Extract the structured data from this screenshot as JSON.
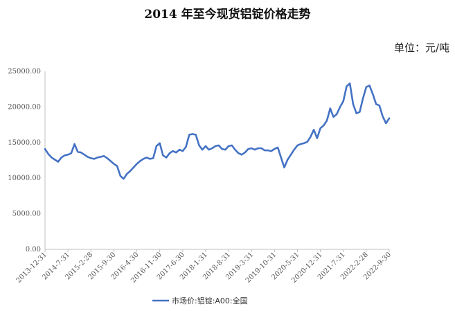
{
  "chart_data": {
    "type": "line",
    "title": "2014 年至今现货铝锭价格走势",
    "unit": "单位：元/吨",
    "ylim": [
      0,
      25000
    ],
    "yticks": [
      "25000.00",
      "20000.00",
      "15000.00",
      "10000.00",
      "5000.00",
      "0.00"
    ],
    "ytick_values": [
      25000,
      20000,
      15000,
      10000,
      5000,
      0
    ],
    "xticks": [
      "2013-12-31",
      "2014-7-31",
      "2015-2-28",
      "2015-9-30",
      "2016-4-30",
      "2016-11-30",
      "2017-6-30",
      "2018-1-31",
      "2018-8-31",
      "2019-3-31",
      "2019-10-31",
      "2020-5-31",
      "2020-12-31",
      "2021-7-31",
      "2022-2-28",
      "2022-9-30"
    ],
    "grid": false,
    "legend": "bottom",
    "line_color": "#4472C4",
    "series": [
      {
        "name": "市场价:铝锭:A00:全国",
        "x": [
          0,
          1,
          2,
          3,
          4,
          5,
          6,
          7,
          8,
          9,
          10,
          11,
          12,
          13,
          14,
          15,
          16,
          17,
          18,
          19,
          20,
          21,
          22,
          23,
          24,
          25,
          26,
          27,
          28,
          29,
          30,
          31,
          32,
          33,
          34,
          35,
          36,
          37,
          38,
          39,
          40,
          41,
          42,
          43,
          44,
          45,
          46,
          47,
          48,
          49,
          50,
          51,
          52,
          53,
          54,
          55,
          56,
          57,
          58,
          59,
          60,
          61,
          62,
          63,
          64,
          65,
          66,
          67,
          68,
          69,
          70,
          71,
          72,
          73,
          74,
          75,
          76,
          77,
          78,
          79,
          80,
          81,
          82,
          83,
          84,
          85,
          86,
          87,
          88,
          89,
          90,
          91,
          92,
          93,
          94,
          95,
          96,
          97,
          98,
          99,
          100,
          101,
          102,
          103,
          104,
          105
        ],
        "values": [
          14100,
          13400,
          12900,
          12600,
          12300,
          12900,
          13200,
          13300,
          13500,
          14800,
          13700,
          13600,
          13300,
          13000,
          12800,
          12700,
          12900,
          13000,
          13100,
          12800,
          12400,
          12000,
          11700,
          10300,
          9900,
          10600,
          11000,
          11500,
          12000,
          12400,
          12700,
          12900,
          12700,
          12800,
          14500,
          14900,
          13200,
          12900,
          13500,
          13800,
          13600,
          14000,
          13800,
          14400,
          16100,
          16200,
          16100,
          14600,
          14000,
          14500,
          14000,
          14200,
          14500,
          14600,
          14100,
          14000,
          14500,
          14600,
          14000,
          13500,
          13300,
          13600,
          14100,
          14200,
          14000,
          14200,
          14200,
          13900,
          13900,
          13800,
          14100,
          14300,
          12900,
          11500,
          12600,
          13300,
          14000,
          14600,
          14800,
          14900,
          15100,
          15800,
          16800,
          15600,
          17000,
          17400,
          18100,
          19800,
          18600,
          19000,
          20000,
          20800,
          22900,
          23300,
          20400,
          19100,
          19300,
          21200,
          22800,
          23000,
          21800,
          20400,
          20200,
          18700,
          17700,
          18400
        ]
      }
    ]
  }
}
